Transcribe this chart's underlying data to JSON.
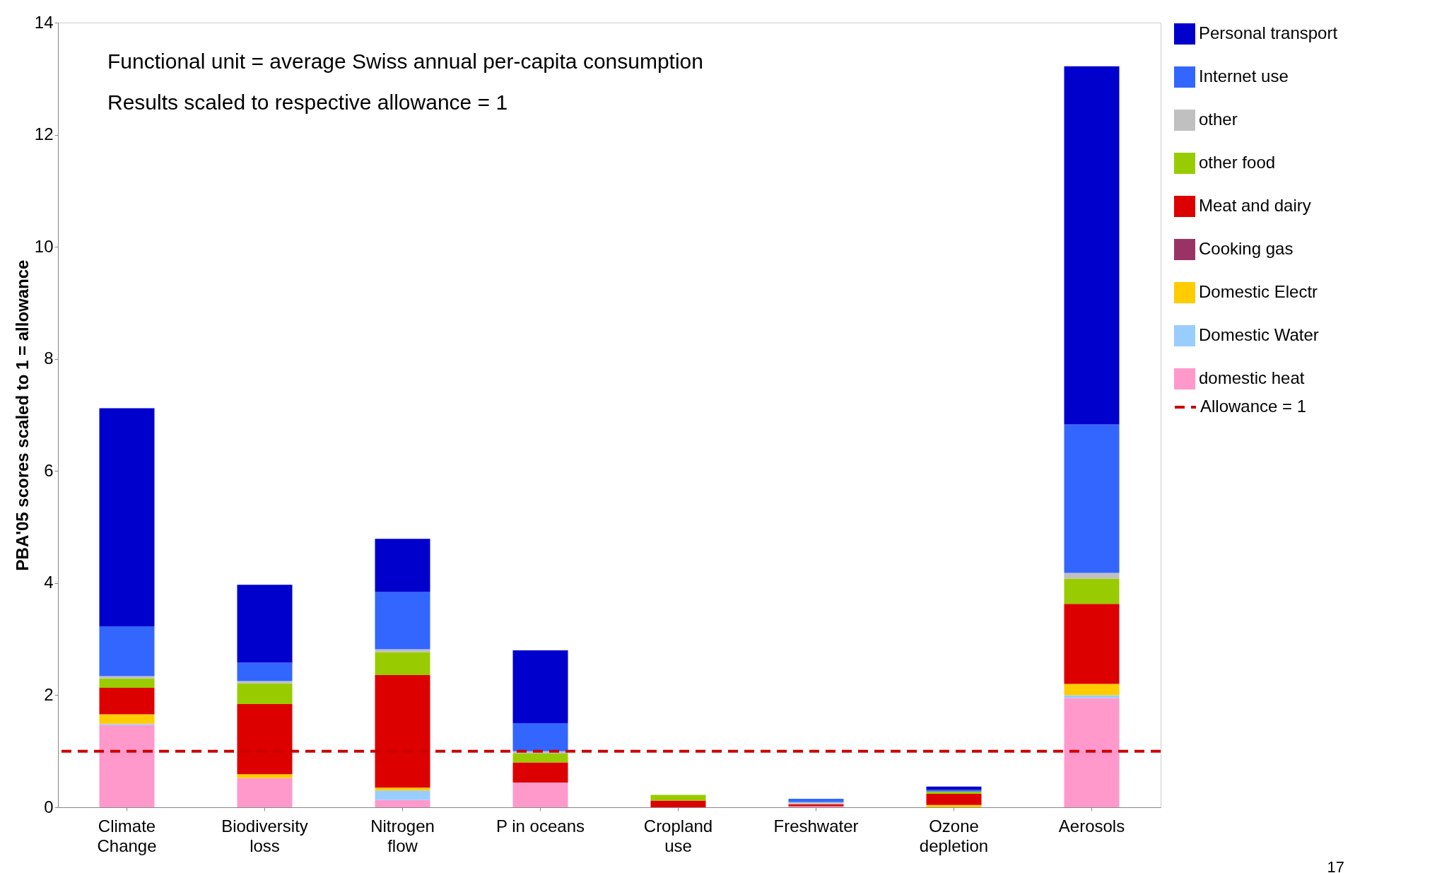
{
  "chart_data": {
    "type": "bar",
    "stacked": true,
    "ylabel": "PBA'05 scores scaled to 1 = allowance",
    "categories": [
      "Climate\nChange",
      "Biodiversity\nloss",
      "Nitrogen\nflow",
      "P in oceans",
      "Cropland\nuse",
      "Freshwater",
      "Ozone\ndepletion",
      "Aerosols"
    ],
    "series": [
      {
        "name": "domestic heat",
        "color": "#ff99cc",
        "values": [
          1.47,
          0.52,
          0.13,
          0.44,
          0,
          0.02,
          0,
          1.95
        ]
      },
      {
        "name": "Domestic Water",
        "color": "#99ccff",
        "values": [
          0.02,
          0,
          0.17,
          0,
          0,
          0,
          0,
          0.05
        ]
      },
      {
        "name": "Domestic Electr",
        "color": "#ffcc00",
        "values": [
          0.17,
          0.07,
          0.05,
          0,
          0,
          0,
          0.04,
          0.2
        ]
      },
      {
        "name": "Cooking gas",
        "color": "#993366",
        "values": [
          0,
          0,
          0,
          0,
          0,
          0,
          0,
          0
        ]
      },
      {
        "name": "Meat and dairy",
        "color": "#dd0000",
        "values": [
          0.47,
          1.25,
          2.01,
          0.36,
          0.12,
          0.03,
          0.2,
          1.43
        ]
      },
      {
        "name": "other food",
        "color": "#99cc00",
        "values": [
          0.17,
          0.37,
          0.41,
          0.16,
          0.1,
          0,
          0.04,
          0.45
        ]
      },
      {
        "name": "other",
        "color": "#c0c0c0",
        "values": [
          0.04,
          0.04,
          0.05,
          0.04,
          0,
          0.04,
          0,
          0.1
        ]
      },
      {
        "name": "Internet use",
        "color": "#3366ff",
        "values": [
          0.89,
          0.33,
          1.02,
          0.5,
          0,
          0.06,
          0.03,
          2.65
        ]
      },
      {
        "name": "Personal transport",
        "color": "#0000cc",
        "values": [
          3.89,
          1.39,
          0.95,
          1.3,
          0,
          0,
          0.06,
          6.39
        ]
      }
    ],
    "ylim": [
      0,
      14
    ],
    "yticks": [
      0,
      2,
      4,
      6,
      8,
      10,
      12,
      14
    ],
    "grid": false,
    "legend": "right",
    "ref_lines": [
      {
        "axis": "y",
        "value": 1,
        "label": "Allowance = 1",
        "color": "#cc0000",
        "line_style": "dashed"
      }
    ],
    "annotations": [
      "Functional unit = average Swiss annual per-capita consumption",
      "Results scaled to respective allowance = 1",
      "17"
    ]
  }
}
